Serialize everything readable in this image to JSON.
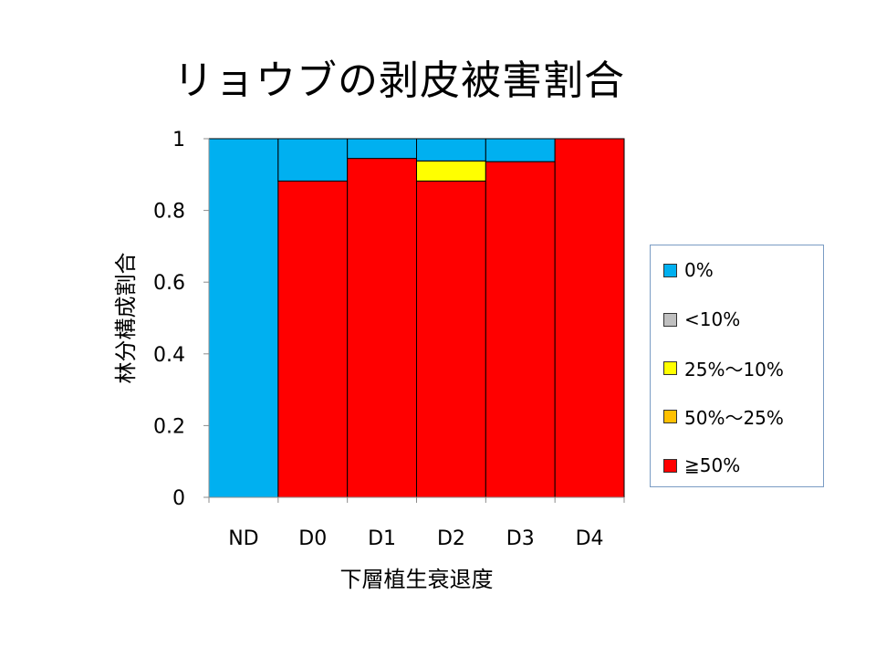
{
  "title": "リョウブの剥皮被害割合",
  "chart_data": {
    "type": "bar",
    "stacked": true,
    "categories": [
      "ND",
      "D0",
      "D1",
      "D2",
      "D3",
      "D4"
    ],
    "xlabel": "下層植生衰退度",
    "ylabel": "林分構成割合",
    "ylim": [
      0,
      1
    ],
    "yticks": [
      "0",
      "0.2",
      "0.4",
      "0.6",
      "0.8",
      "1"
    ],
    "grid": false,
    "legend_position": "right",
    "series": [
      {
        "name": "≧50%",
        "color": "#ff0000",
        "values": [
          0,
          0.882,
          0.945,
          0.882,
          0.936,
          1
        ]
      },
      {
        "name": "50%〜25%",
        "color": "#ffc000",
        "values": [
          0,
          0,
          0,
          0,
          0,
          0
        ]
      },
      {
        "name": "25%〜10%",
        "color": "#ffff00",
        "values": [
          0,
          0,
          0,
          0.056,
          0,
          0
        ]
      },
      {
        "name": "<10%",
        "color": "#c0c0c0",
        "values": [
          0,
          0,
          0,
          0,
          0,
          0
        ]
      },
      {
        "name": "0%",
        "color": "#00b0f0",
        "values": [
          1,
          0.118,
          0.055,
          0.062,
          0.064,
          0
        ]
      }
    ],
    "legend": [
      {
        "label": "0%",
        "color": "#00b0f0"
      },
      {
        "label": "<10%",
        "color": "#c0c0c0"
      },
      {
        "label": "25%〜10%",
        "color": "#ffff00"
      },
      {
        "label": "50%〜25%",
        "color": "#ffc000"
      },
      {
        "label": "≧50%",
        "color": "#ff0000"
      }
    ]
  }
}
